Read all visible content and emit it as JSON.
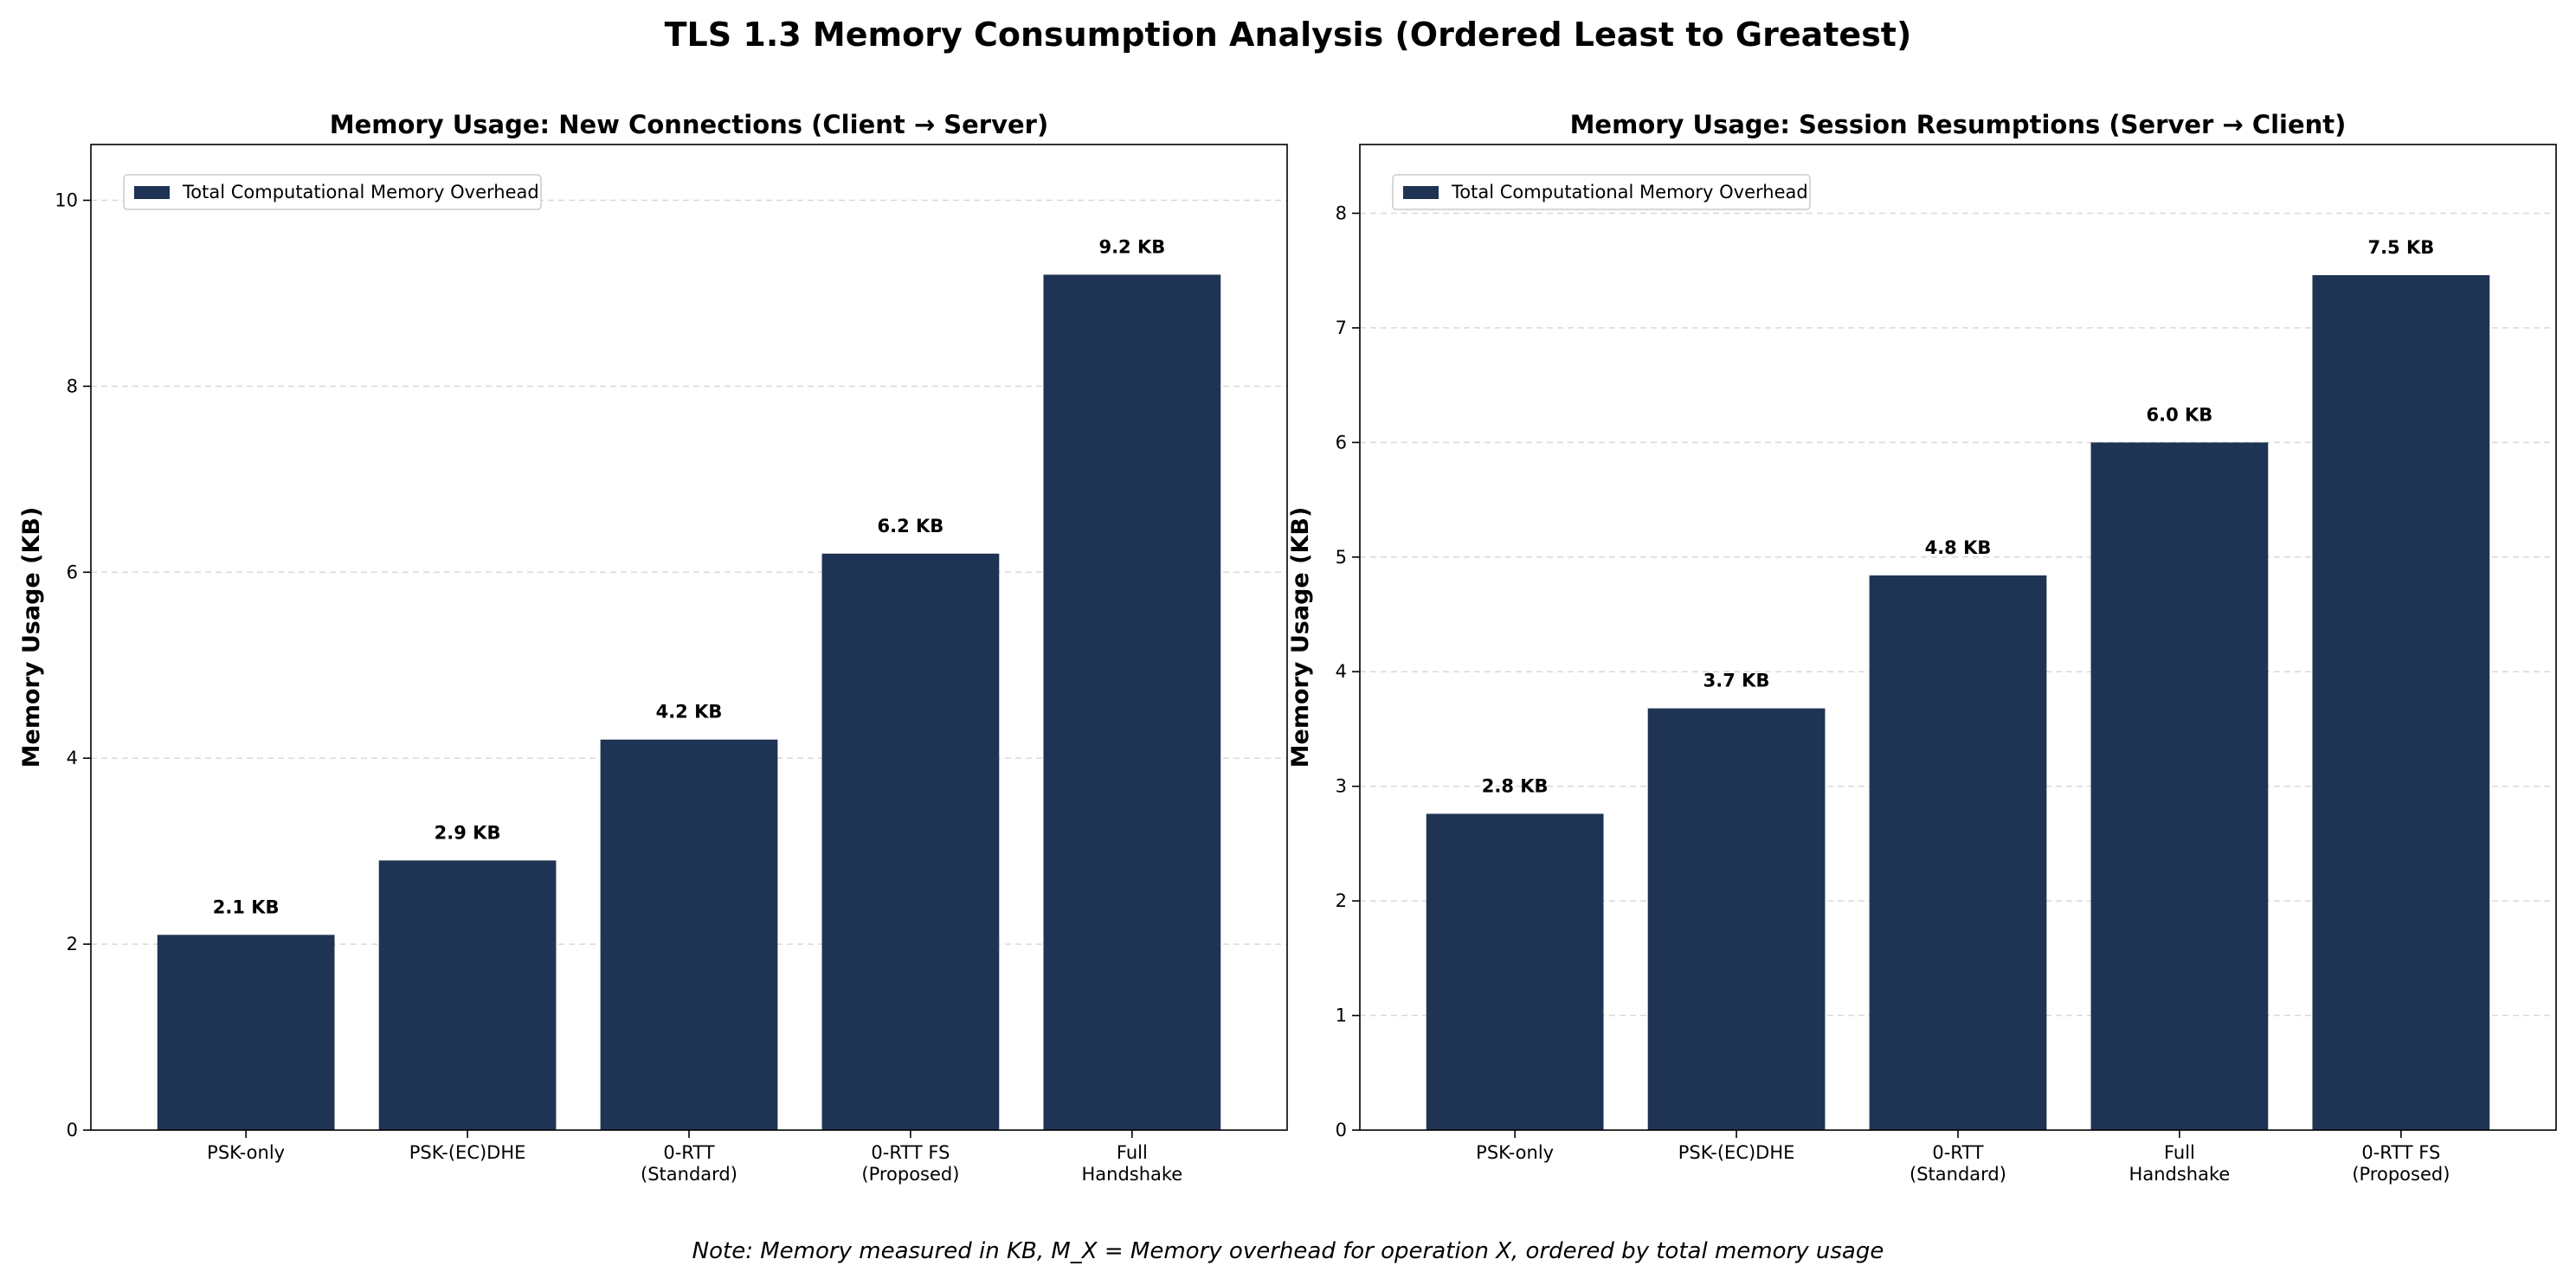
{
  "figure": {
    "title": "TLS 1.3 Memory Consumption Analysis (Ordered Least to Greatest)",
    "note": "Note: Memory measured in KB, M_X = Memory overhead for operation X, ordered by total memory usage",
    "bar_color": "#1f3354"
  },
  "chart_data": [
    {
      "type": "bar",
      "title": "Memory Usage: New Connections (Client → Server)",
      "xlabel": "",
      "ylabel": "Memory Usage (KB)",
      "categories": [
        "PSK-only",
        "PSK-(EC)DHE",
        "0-RTT\n(Standard)",
        "0-RTT FS\n(Proposed)",
        "Full\nHandshake"
      ],
      "series": [
        {
          "name": "Total Computational Memory Overhead",
          "values": [
            2.1,
            2.9,
            4.2,
            6.2,
            9.2
          ]
        }
      ],
      "data_labels": [
        "2.1 KB",
        "2.9 KB",
        "4.2 KB",
        "6.2 KB",
        "9.2 KB"
      ],
      "ylim": [
        0,
        10.6
      ],
      "yticks": [
        0,
        2,
        4,
        6,
        8,
        10
      ],
      "grid": true,
      "legend": "top-left"
    },
    {
      "type": "bar",
      "title": "Memory Usage: Session Resumptions (Server → Client)",
      "xlabel": "",
      "ylabel": "Memory Usage (KB)",
      "categories": [
        "PSK-only",
        "PSK-(EC)DHE",
        "0-RTT\n(Standard)",
        "Full\nHandshake",
        "0-RTT FS\n(Proposed)"
      ],
      "series": [
        {
          "name": "Total Computational Memory Overhead",
          "values": [
            2.76,
            3.68,
            4.84,
            6.0,
            7.46
          ]
        }
      ],
      "data_labels": [
        "2.8 KB",
        "3.7 KB",
        "4.8 KB",
        "6.0 KB",
        "7.5 KB"
      ],
      "ylim": [
        0,
        8.6
      ],
      "yticks": [
        0,
        1,
        2,
        3,
        4,
        5,
        6,
        7,
        8
      ],
      "grid": true,
      "legend": "top-left"
    }
  ]
}
